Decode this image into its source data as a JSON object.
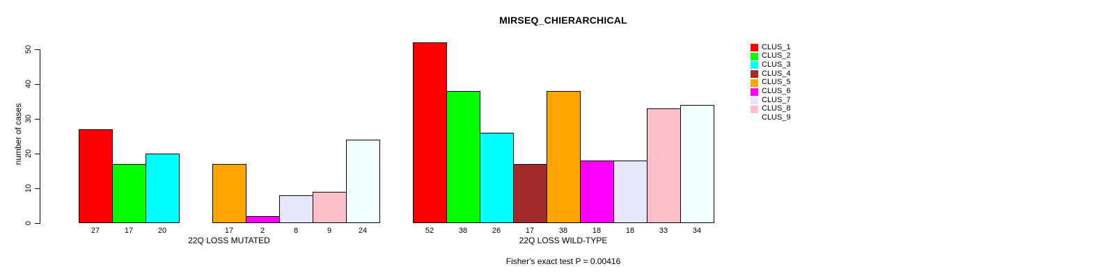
{
  "chart_data": {
    "type": "bar",
    "title": "MIRSEQ_CHIERARCHICAL",
    "ylabel": "number of cases",
    "ylim": [
      0,
      50
    ],
    "yticks": [
      0,
      10,
      20,
      30,
      40,
      50
    ],
    "grid": false,
    "legend_position": "right",
    "background_color": "#ffffff",
    "bar_border_color": "#000000",
    "hide_zero_bars": true,
    "clusters": [
      {
        "name": "CLUS_1",
        "color": "#FF0000"
      },
      {
        "name": "CLUS_2",
        "color": "#00FF00"
      },
      {
        "name": "CLUS_3",
        "color": "#00FFFF"
      },
      {
        "name": "CLUS_4",
        "color": "#A52A2A"
      },
      {
        "name": "CLUS_5",
        "color": "#FFA500"
      },
      {
        "name": "CLUS_6",
        "color": "#FF00FF"
      },
      {
        "name": "CLUS_7",
        "color": "#E6E6FA"
      },
      {
        "name": "CLUS_8",
        "color": "#FFC0CB"
      },
      {
        "name": "CLUS_9",
        "color": "#F0FFFF"
      }
    ],
    "groups": [
      {
        "label": "22Q LOSS MUTATED",
        "values": [
          27,
          17,
          20,
          0,
          17,
          2,
          8,
          9,
          24
        ]
      },
      {
        "label": "22Q LOSS WILD-TYPE",
        "values": [
          52,
          38,
          26,
          17,
          38,
          18,
          18,
          33,
          34
        ]
      }
    ],
    "annotation": "Fisher's exact test P = 0.00416"
  }
}
